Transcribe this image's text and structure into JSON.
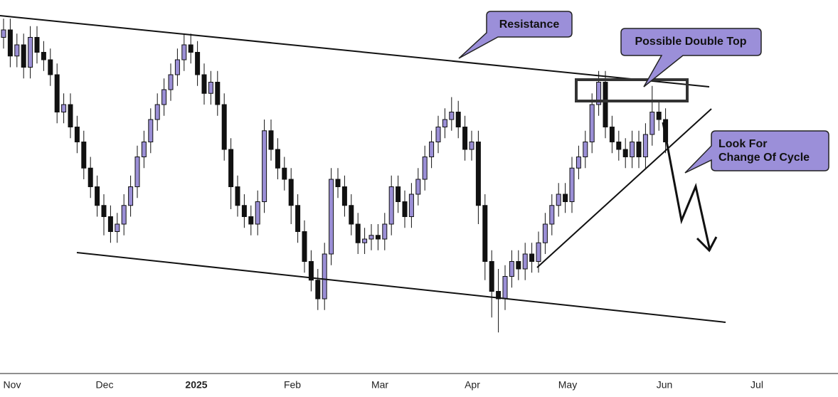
{
  "chart_data": {
    "type": "candlestick",
    "ylim": [
      0,
      100
    ],
    "up_color": "#9b8fd6",
    "down_color": "#111111",
    "xticks": [
      "Nov",
      "Dec",
      "2025",
      "Feb",
      "Mar",
      "Apr",
      "May",
      "Jun",
      "Jul"
    ],
    "open": [
      90,
      92,
      85,
      88,
      82,
      90,
      86,
      84,
      80,
      70,
      72,
      66,
      62,
      55,
      50,
      45,
      42,
      38,
      40,
      45,
      50,
      58,
      62,
      68,
      72,
      76,
      80,
      84,
      88,
      86,
      80,
      75,
      78,
      72,
      60,
      50,
      45,
      42,
      40,
      46,
      65,
      60,
      55,
      52,
      45,
      38,
      30,
      25,
      20,
      32,
      52,
      50,
      45,
      40,
      35,
      36,
      37,
      36,
      40,
      50,
      46,
      42,
      48,
      52,
      58,
      62,
      66,
      68,
      70,
      66,
      60,
      62,
      45,
      30,
      22,
      20,
      26,
      30,
      28,
      32,
      30,
      35,
      40,
      45,
      48,
      46,
      55,
      58,
      62,
      72,
      78,
      66,
      62,
      60,
      58,
      62,
      58,
      64,
      70,
      68
    ],
    "high": [
      95,
      95,
      91,
      91,
      93,
      93,
      89,
      87,
      83,
      75,
      75,
      69,
      65,
      58,
      53,
      48,
      45,
      43,
      48,
      53,
      61,
      65,
      71,
      75,
      79,
      83,
      87,
      91,
      91,
      89,
      83,
      81,
      81,
      75,
      63,
      53,
      48,
      45,
      49,
      68,
      68,
      63,
      58,
      55,
      48,
      41,
      33,
      28,
      35,
      55,
      55,
      53,
      48,
      43,
      39,
      40,
      40,
      43,
      53,
      53,
      49,
      51,
      55,
      61,
      65,
      69,
      71,
      74,
      73,
      69,
      65,
      65,
      48,
      33,
      28,
      29,
      33,
      33,
      35,
      35,
      38,
      43,
      48,
      51,
      51,
      58,
      61,
      65,
      75,
      81,
      81,
      69,
      65,
      63,
      65,
      65,
      67,
      77,
      73,
      71
    ],
    "low": [
      87,
      82,
      82,
      79,
      79,
      83,
      81,
      77,
      67,
      67,
      63,
      59,
      52,
      47,
      42,
      37,
      35,
      35,
      37,
      42,
      47,
      55,
      59,
      65,
      69,
      73,
      77,
      81,
      83,
      77,
      72,
      72,
      69,
      57,
      44,
      42,
      39,
      37,
      37,
      43,
      57,
      52,
      49,
      40,
      35,
      27,
      22,
      17,
      17,
      29,
      47,
      42,
      37,
      32,
      32,
      33,
      33,
      33,
      37,
      43,
      39,
      39,
      45,
      49,
      55,
      59,
      63,
      65,
      63,
      57,
      57,
      40,
      25,
      15,
      11,
      17,
      23,
      25,
      25,
      27,
      27,
      32,
      37,
      42,
      43,
      43,
      52,
      55,
      59,
      69,
      63,
      59,
      57,
      55,
      55,
      55,
      55,
      61,
      65,
      59
    ],
    "close": [
      92,
      85,
      88,
      82,
      90,
      86,
      84,
      80,
      70,
      72,
      66,
      62,
      55,
      50,
      45,
      42,
      38,
      40,
      45,
      50,
      58,
      62,
      68,
      72,
      76,
      80,
      84,
      88,
      86,
      80,
      75,
      78,
      72,
      60,
      50,
      45,
      42,
      40,
      46,
      65,
      60,
      55,
      52,
      45,
      38,
      30,
      25,
      20,
      32,
      52,
      50,
      45,
      40,
      35,
      36,
      37,
      36,
      40,
      50,
      46,
      42,
      48,
      52,
      58,
      62,
      66,
      68,
      70,
      66,
      60,
      62,
      45,
      30,
      22,
      20,
      26,
      30,
      28,
      32,
      30,
      35,
      40,
      45,
      48,
      46,
      55,
      58,
      62,
      72,
      78,
      66,
      62,
      60,
      58,
      62,
      58,
      64,
      70,
      68,
      62
    ],
    "annotations": {
      "resistance": "Resistance",
      "double_top": "Possible Double Top",
      "cycle": [
        "Look For",
        "Change Of Cycle"
      ]
    }
  }
}
